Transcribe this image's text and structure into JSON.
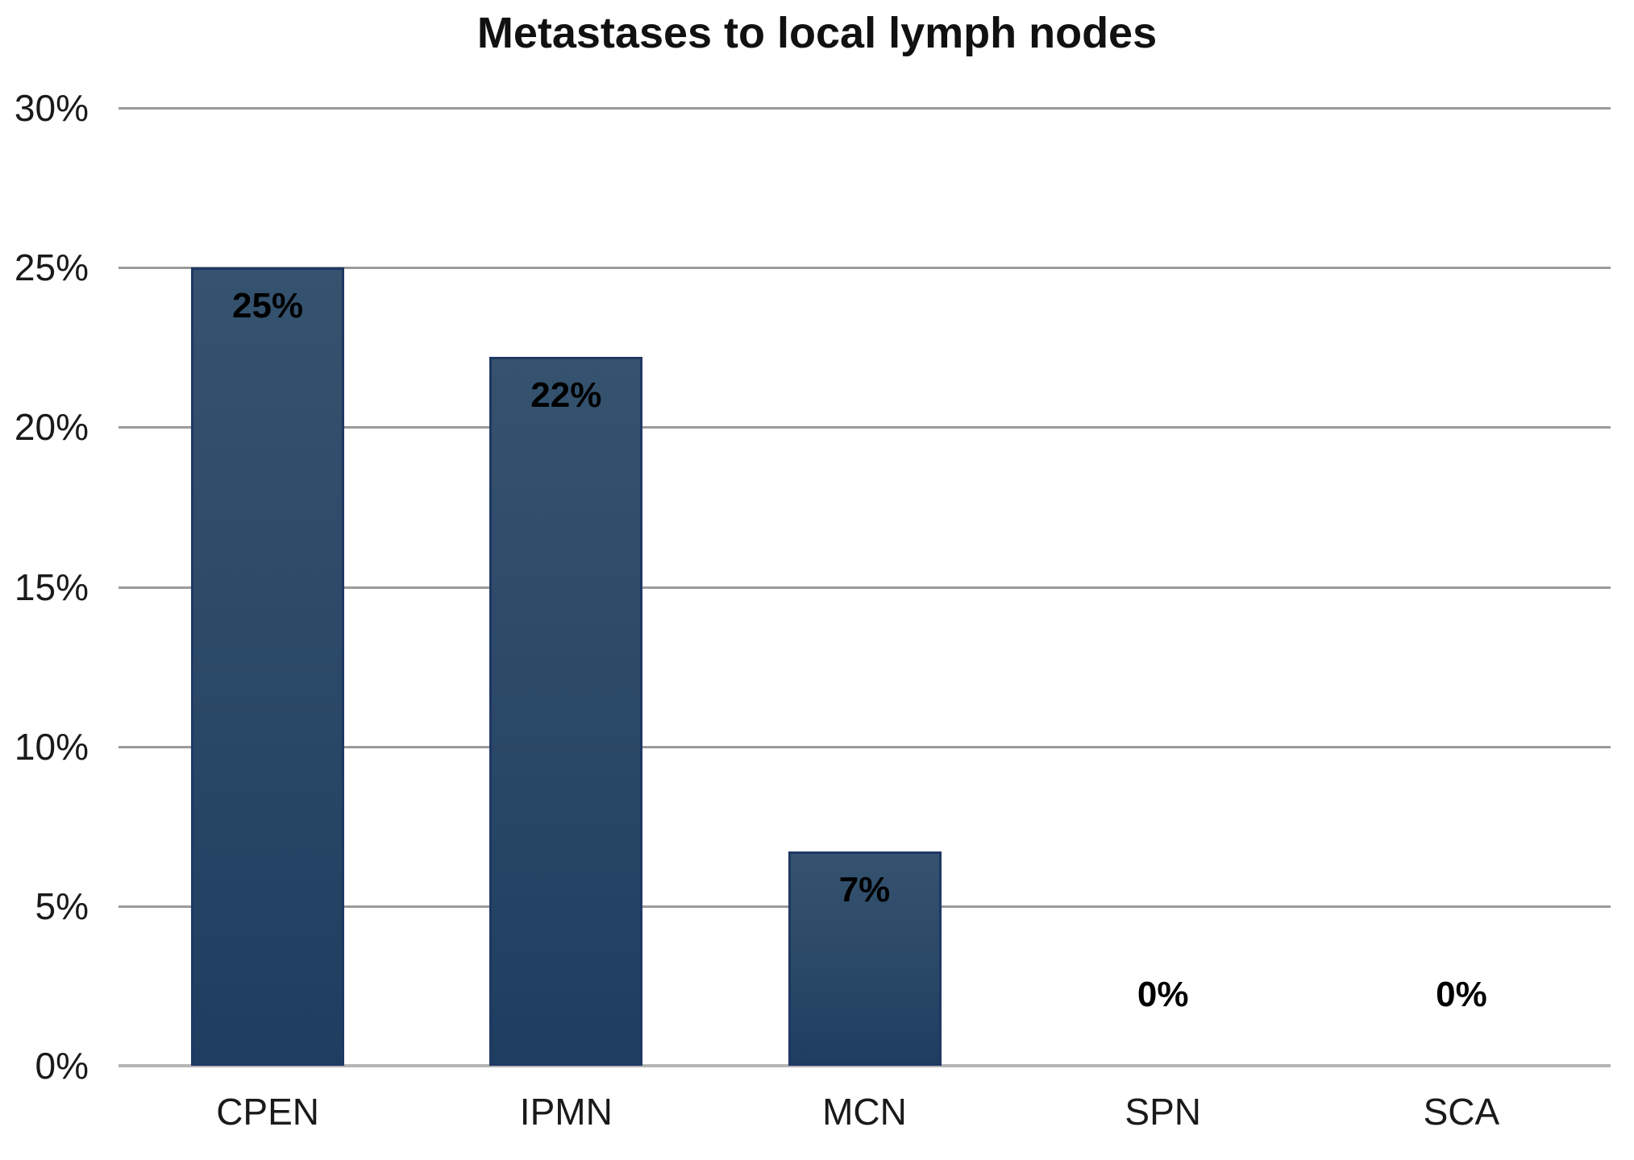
{
  "chart_data": {
    "type": "bar",
    "title": "Metastases to local lymph nodes",
    "categories": [
      "CPEN",
      "IPMN",
      "MCN",
      "SPN",
      "SCA"
    ],
    "values": [
      25,
      22.2,
      6.7,
      0,
      0
    ],
    "value_labels": [
      "25%",
      "22%",
      "7%",
      "0%",
      "0%"
    ],
    "yticks": [
      "30%",
      "25%",
      "20%",
      "15%",
      "10%",
      "5%",
      "0%"
    ],
    "ylim": [
      0,
      30
    ],
    "xlabel": "",
    "ylabel": "",
    "grid": true,
    "legend": "none",
    "colors": {
      "bar_fill_top": "#35536f",
      "bar_fill_mid": "#2c4a68",
      "bar_fill_bottom": "#1f3d60",
      "bar_border": "#1f3864",
      "gridline": "#9a9a9a",
      "baseline": "#b5b5b5",
      "tick_text": "#1a1a1a",
      "title_text": "#111111",
      "data_label_text": "#000000",
      "background": "#ffffff"
    }
  }
}
